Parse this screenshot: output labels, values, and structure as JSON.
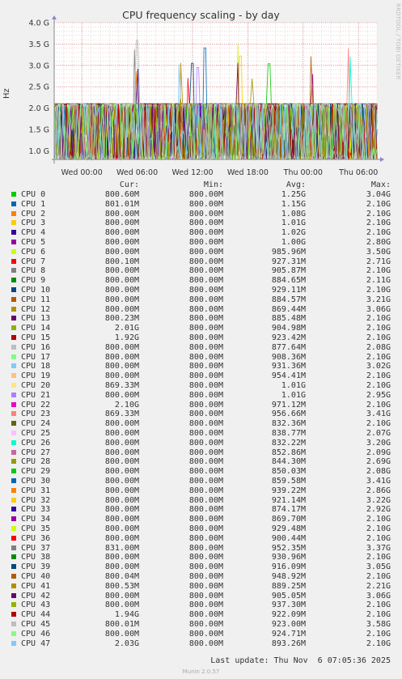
{
  "title": "CPU frequency scaling - by day",
  "watermark": "RRDTOOL / TOBI OETIKER",
  "footer": {
    "last_update": "Last update: Thu Nov  6 07:05:36 2025",
    "munin": "Munin 2.0.57"
  },
  "legend_headers": {
    "cur": "Cur:",
    "min": "Min:",
    "avg": "Avg:",
    "max": "Max:"
  },
  "chart_data": {
    "type": "line",
    "title": "CPU frequency scaling - by day",
    "ylabel": "Hz",
    "y_ticks": [
      "4.0 G",
      "3.5 G",
      "3.0 G",
      "2.5 G",
      "2.0 G",
      "1.5 G",
      "1.0 G"
    ],
    "y_tick_values": [
      4.0,
      3.5,
      3.0,
      2.5,
      2.0,
      1.5,
      1.0
    ],
    "ylim": [
      0.8,
      4.0
    ],
    "x_ticks": [
      "Wed 00:00",
      "Wed 06:00",
      "Wed 12:00",
      "Wed 18:00",
      "Thu 00:00",
      "Thu 06:00"
    ],
    "xlim_hours": [
      -3,
      32
    ],
    "x_tick_hours": [
      0,
      6,
      12,
      18,
      24,
      30
    ],
    "grid": true,
    "series": [
      {
        "name": "CPU 0",
        "color": "#00cc00",
        "cur": "800.60M",
        "min": "800.00M",
        "avg": "1.25G",
        "max": "3.04G"
      },
      {
        "name": "CPU 1",
        "color": "#0066b3",
        "cur": "801.01M",
        "min": "800.00M",
        "avg": "1.15G",
        "max": "2.10G"
      },
      {
        "name": "CPU 2",
        "color": "#ff8000",
        "cur": "800.00M",
        "min": "800.00M",
        "avg": "1.08G",
        "max": "2.10G"
      },
      {
        "name": "CPU 3",
        "color": "#ffcc00",
        "cur": "800.00M",
        "min": "800.00M",
        "avg": "1.01G",
        "max": "2.10G"
      },
      {
        "name": "CPU 4",
        "color": "#330099",
        "cur": "800.00M",
        "min": "800.00M",
        "avg": "1.02G",
        "max": "2.10G"
      },
      {
        "name": "CPU 5",
        "color": "#990099",
        "cur": "800.00M",
        "min": "800.00M",
        "avg": "1.00G",
        "max": "2.80G"
      },
      {
        "name": "CPU 6",
        "color": "#ccff00",
        "cur": "800.00M",
        "min": "800.00M",
        "avg": "985.96M",
        "max": "3.50G"
      },
      {
        "name": "CPU 7",
        "color": "#ff0000",
        "cur": "800.10M",
        "min": "800.00M",
        "avg": "927.31M",
        "max": "2.71G"
      },
      {
        "name": "CPU 8",
        "color": "#808080",
        "cur": "800.00M",
        "min": "800.00M",
        "avg": "905.87M",
        "max": "2.10G"
      },
      {
        "name": "CPU 9",
        "color": "#008f00",
        "cur": "800.00M",
        "min": "800.00M",
        "avg": "884.65M",
        "max": "2.11G"
      },
      {
        "name": "CPU 10",
        "color": "#00487d",
        "cur": "800.00M",
        "min": "800.00M",
        "avg": "929.11M",
        "max": "2.10G"
      },
      {
        "name": "CPU 11",
        "color": "#b35a00",
        "cur": "800.00M",
        "min": "800.00M",
        "avg": "884.57M",
        "max": "3.21G"
      },
      {
        "name": "CPU 12",
        "color": "#b38f00",
        "cur": "800.00M",
        "min": "800.00M",
        "avg": "869.44M",
        "max": "3.06G"
      },
      {
        "name": "CPU 13",
        "color": "#6b006b",
        "cur": "800.23M",
        "min": "800.00M",
        "avg": "885.48M",
        "max": "2.10G"
      },
      {
        "name": "CPU 14",
        "color": "#8fb300",
        "cur": "2.01G",
        "min": "800.00M",
        "avg": "904.98M",
        "max": "2.10G"
      },
      {
        "name": "CPU 15",
        "color": "#b30000",
        "cur": "1.92G",
        "min": "800.00M",
        "avg": "923.42M",
        "max": "2.10G"
      },
      {
        "name": "CPU 16",
        "color": "#bebebe",
        "cur": "800.00M",
        "min": "800.00M",
        "avg": "877.64M",
        "max": "2.08G"
      },
      {
        "name": "CPU 17",
        "color": "#80ff80",
        "cur": "800.00M",
        "min": "800.00M",
        "avg": "908.36M",
        "max": "2.10G"
      },
      {
        "name": "CPU 18",
        "color": "#80c9ff",
        "cur": "800.00M",
        "min": "800.00M",
        "avg": "931.36M",
        "max": "3.02G"
      },
      {
        "name": "CPU 19",
        "color": "#ffc080",
        "cur": "800.00M",
        "min": "800.00M",
        "avg": "954.41M",
        "max": "2.10G"
      },
      {
        "name": "CPU 20",
        "color": "#ffe680",
        "cur": "869.33M",
        "min": "800.00M",
        "avg": "1.01G",
        "max": "2.10G"
      },
      {
        "name": "CPU 21",
        "color": "#aa80ff",
        "cur": "800.00M",
        "min": "800.00M",
        "avg": "1.01G",
        "max": "2.95G"
      },
      {
        "name": "CPU 22",
        "color": "#ee00cc",
        "cur": "2.10G",
        "min": "800.00M",
        "avg": "971.12M",
        "max": "2.10G"
      },
      {
        "name": "CPU 23",
        "color": "#ff8080",
        "cur": "869.33M",
        "min": "800.00M",
        "avg": "956.66M",
        "max": "3.41G"
      },
      {
        "name": "CPU 24",
        "color": "#666600",
        "cur": "800.00M",
        "min": "800.00M",
        "avg": "832.36M",
        "max": "2.10G"
      },
      {
        "name": "CPU 25",
        "color": "#ffbfff",
        "cur": "800.00M",
        "min": "800.00M",
        "avg": "838.77M",
        "max": "2.07G"
      },
      {
        "name": "CPU 26",
        "color": "#00ffcc",
        "cur": "800.00M",
        "min": "800.00M",
        "avg": "832.22M",
        "max": "3.20G"
      },
      {
        "name": "CPU 27",
        "color": "#cc6699",
        "cur": "800.00M",
        "min": "800.00M",
        "avg": "852.86M",
        "max": "2.09G"
      },
      {
        "name": "CPU 28",
        "color": "#999900",
        "cur": "800.00M",
        "min": "800.00M",
        "avg": "844.30M",
        "max": "2.69G"
      },
      {
        "name": "CPU 29",
        "color": "#00cc00",
        "cur": "800.00M",
        "min": "800.00M",
        "avg": "850.03M",
        "max": "2.08G"
      },
      {
        "name": "CPU 30",
        "color": "#0066b3",
        "cur": "800.00M",
        "min": "800.00M",
        "avg": "859.58M",
        "max": "3.41G"
      },
      {
        "name": "CPU 31",
        "color": "#ff8000",
        "cur": "800.00M",
        "min": "800.00M",
        "avg": "939.22M",
        "max": "2.86G"
      },
      {
        "name": "CPU 32",
        "color": "#ffcc00",
        "cur": "800.00M",
        "min": "800.00M",
        "avg": "921.14M",
        "max": "3.22G"
      },
      {
        "name": "CPU 33",
        "color": "#330099",
        "cur": "800.00M",
        "min": "800.00M",
        "avg": "874.17M",
        "max": "2.92G"
      },
      {
        "name": "CPU 34",
        "color": "#990099",
        "cur": "800.00M",
        "min": "800.00M",
        "avg": "869.70M",
        "max": "2.10G"
      },
      {
        "name": "CPU 35",
        "color": "#ccff00",
        "cur": "800.00M",
        "min": "800.00M",
        "avg": "929.48M",
        "max": "2.10G"
      },
      {
        "name": "CPU 36",
        "color": "#ff0000",
        "cur": "800.00M",
        "min": "800.00M",
        "avg": "900.44M",
        "max": "2.10G"
      },
      {
        "name": "CPU 37",
        "color": "#808080",
        "cur": "831.00M",
        "min": "800.00M",
        "avg": "952.35M",
        "max": "3.37G"
      },
      {
        "name": "CPU 38",
        "color": "#008f00",
        "cur": "800.00M",
        "min": "800.00M",
        "avg": "930.96M",
        "max": "2.10G"
      },
      {
        "name": "CPU 39",
        "color": "#00487d",
        "cur": "800.00M",
        "min": "800.00M",
        "avg": "916.09M",
        "max": "3.05G"
      },
      {
        "name": "CPU 40",
        "color": "#b35a00",
        "cur": "800.04M",
        "min": "800.00M",
        "avg": "948.92M",
        "max": "2.10G"
      },
      {
        "name": "CPU 41",
        "color": "#b38f00",
        "cur": "800.53M",
        "min": "800.00M",
        "avg": "889.25M",
        "max": "2.21G"
      },
      {
        "name": "CPU 42",
        "color": "#6b006b",
        "cur": "800.00M",
        "min": "800.00M",
        "avg": "905.05M",
        "max": "3.06G"
      },
      {
        "name": "CPU 43",
        "color": "#8fb300",
        "cur": "800.00M",
        "min": "800.00M",
        "avg": "937.30M",
        "max": "2.10G"
      },
      {
        "name": "CPU 44",
        "color": "#b30000",
        "cur": "1.94G",
        "min": "800.00M",
        "avg": "922.09M",
        "max": "2.10G"
      },
      {
        "name": "CPU 45",
        "color": "#bebebe",
        "cur": "800.01M",
        "min": "800.00M",
        "avg": "923.00M",
        "max": "3.58G"
      },
      {
        "name": "CPU 46",
        "color": "#80ff80",
        "cur": "800.00M",
        "min": "800.00M",
        "avg": "924.71M",
        "max": "2.10G"
      },
      {
        "name": "CPU 47",
        "color": "#80c9ff",
        "cur": "2.03G",
        "min": "800.00M",
        "avg": "893.26M",
        "max": "2.10G"
      }
    ]
  }
}
